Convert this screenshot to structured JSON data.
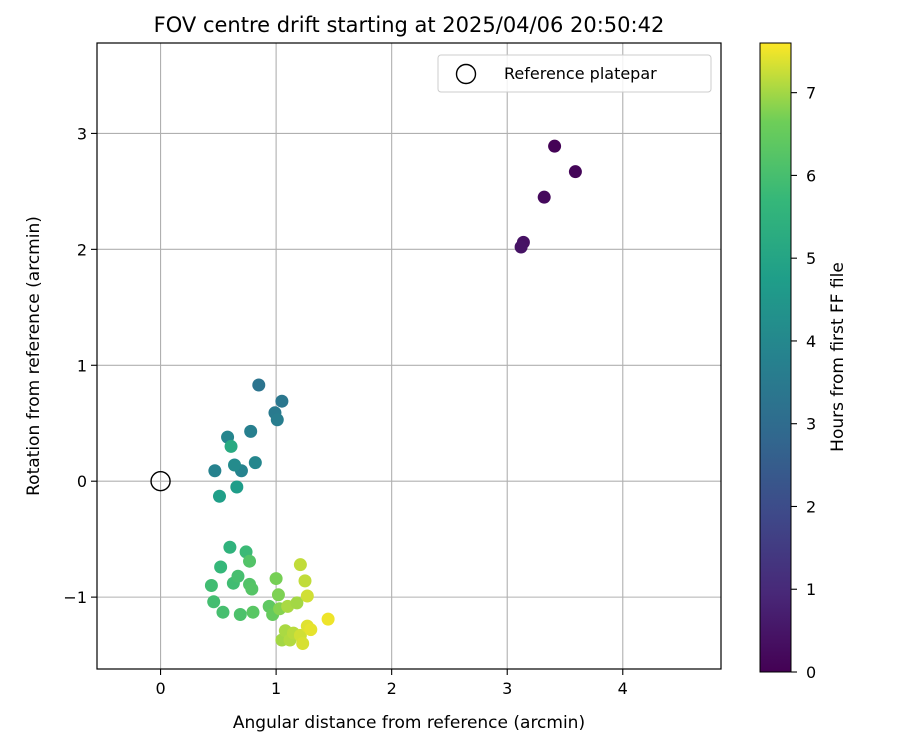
{
  "chart_data": {
    "type": "scatter",
    "title": "FOV centre drift starting at 2025/04/06 20:50:42",
    "xlabel": "Angular distance from reference (arcmin)",
    "ylabel": "Rotation from reference (arcmin)",
    "xlim": [
      -0.55,
      4.85
    ],
    "ylim": [
      -1.62,
      3.78
    ],
    "xticks": [
      0,
      1,
      2,
      3,
      4
    ],
    "yticks": [
      -1,
      0,
      1,
      2,
      3
    ],
    "grid": true,
    "legend": {
      "placement": "top-right",
      "entries": [
        "Reference platepar"
      ]
    },
    "reference_point": {
      "x": 0,
      "y": 0
    },
    "colorbar": {
      "label": "Hours from first FF file",
      "colormap": "viridis",
      "range": [
        0,
        7.6
      ],
      "ticks": [
        0,
        1,
        2,
        3,
        4,
        5,
        6,
        7
      ]
    },
    "points": [
      {
        "x": 3.41,
        "y": 2.89,
        "c": 0.05
      },
      {
        "x": 3.59,
        "y": 2.67,
        "c": 0.1
      },
      {
        "x": 3.32,
        "y": 2.45,
        "c": 0.2
      },
      {
        "x": 3.14,
        "y": 2.06,
        "c": 0.4
      },
      {
        "x": 3.12,
        "y": 2.02,
        "c": 0.45
      },
      {
        "x": 0.85,
        "y": 0.83,
        "c": 3.3
      },
      {
        "x": 1.05,
        "y": 0.69,
        "c": 3.4
      },
      {
        "x": 0.99,
        "y": 0.59,
        "c": 3.5
      },
      {
        "x": 1.01,
        "y": 0.53,
        "c": 3.6
      },
      {
        "x": 0.78,
        "y": 0.43,
        "c": 3.7
      },
      {
        "x": 0.58,
        "y": 0.38,
        "c": 3.9
      },
      {
        "x": 0.47,
        "y": 0.09,
        "c": 3.8
      },
      {
        "x": 0.7,
        "y": 0.09,
        "c": 3.85
      },
      {
        "x": 0.82,
        "y": 0.16,
        "c": 3.95
      },
      {
        "x": 0.64,
        "y": 0.14,
        "c": 4.1
      },
      {
        "x": 0.66,
        "y": -0.05,
        "c": 4.7
      },
      {
        "x": 0.51,
        "y": -0.13,
        "c": 4.8
      },
      {
        "x": 0.61,
        "y": 0.3,
        "c": 5.2
      },
      {
        "x": 0.6,
        "y": -0.57,
        "c": 5.5
      },
      {
        "x": 0.74,
        "y": -0.61,
        "c": 5.8
      },
      {
        "x": 0.52,
        "y": -0.74,
        "c": 5.7
      },
      {
        "x": 0.77,
        "y": -0.69,
        "c": 6.2
      },
      {
        "x": 0.44,
        "y": -0.9,
        "c": 5.9
      },
      {
        "x": 0.46,
        "y": -1.04,
        "c": 5.95
      },
      {
        "x": 0.54,
        "y": -1.13,
        "c": 6.0
      },
      {
        "x": 0.63,
        "y": -0.88,
        "c": 5.9
      },
      {
        "x": 0.67,
        "y": -0.82,
        "c": 6.0
      },
      {
        "x": 0.69,
        "y": -1.15,
        "c": 6.1
      },
      {
        "x": 0.77,
        "y": -0.89,
        "c": 6.2
      },
      {
        "x": 0.79,
        "y": -0.93,
        "c": 6.25
      },
      {
        "x": 0.8,
        "y": -1.13,
        "c": 6.3
      },
      {
        "x": 0.94,
        "y": -1.08,
        "c": 6.4
      },
      {
        "x": 0.97,
        "y": -1.15,
        "c": 6.5
      },
      {
        "x": 1.0,
        "y": -0.84,
        "c": 6.7
      },
      {
        "x": 1.02,
        "y": -0.98,
        "c": 6.75
      },
      {
        "x": 1.03,
        "y": -1.1,
        "c": 6.8
      },
      {
        "x": 1.05,
        "y": -1.37,
        "c": 7.0
      },
      {
        "x": 1.08,
        "y": -1.29,
        "c": 7.05
      },
      {
        "x": 1.1,
        "y": -1.08,
        "c": 7.05
      },
      {
        "x": 1.12,
        "y": -1.37,
        "c": 7.1
      },
      {
        "x": 1.15,
        "y": -1.31,
        "c": 7.15
      },
      {
        "x": 1.18,
        "y": -1.05,
        "c": 7.0
      },
      {
        "x": 1.21,
        "y": -0.72,
        "c": 7.2
      },
      {
        "x": 1.25,
        "y": -0.86,
        "c": 7.2
      },
      {
        "x": 1.21,
        "y": -1.33,
        "c": 7.3
      },
      {
        "x": 1.23,
        "y": -1.4,
        "c": 7.35
      },
      {
        "x": 1.27,
        "y": -0.99,
        "c": 7.3
      },
      {
        "x": 1.27,
        "y": -1.25,
        "c": 7.4
      },
      {
        "x": 1.3,
        "y": -1.28,
        "c": 7.45
      },
      {
        "x": 1.45,
        "y": -1.19,
        "c": 7.5
      }
    ]
  }
}
